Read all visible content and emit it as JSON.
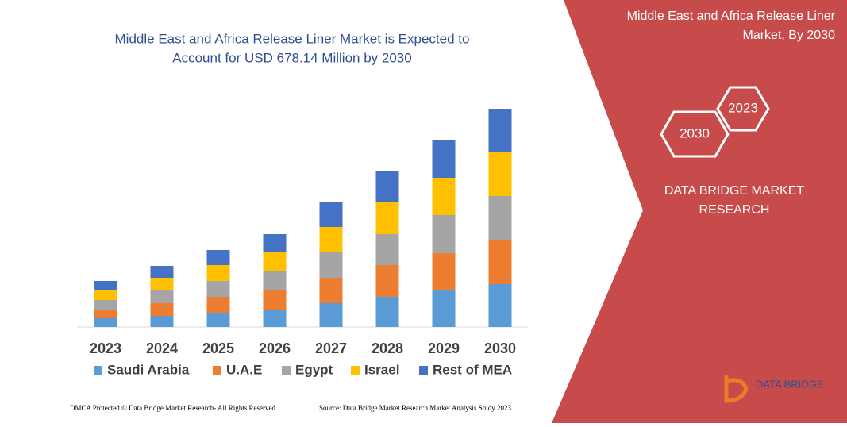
{
  "chart_data": {
    "type": "stacked-bar",
    "title": [
      "Middle East and Africa Release Liner Market is Expected to",
      "Account for USD 678.14 Million by 2030"
    ],
    "categories": [
      "2023",
      "2024",
      "2025",
      "2026",
      "2027",
      "2028",
      "2029",
      "2030"
    ],
    "series": [
      {
        "name": "Saudi Arabia",
        "color": "#5b9bd5",
        "values": [
          11,
          14,
          18,
          22,
          30,
          38,
          46,
          54
        ]
      },
      {
        "name": "U.A.E",
        "color": "#ed7d31",
        "values": [
          11,
          16,
          20,
          24,
          32,
          40,
          47,
          55
        ]
      },
      {
        "name": "Egypt",
        "color": "#a5a5a5",
        "values": [
          12,
          16,
          20,
          24,
          32,
          39,
          48,
          56
        ]
      },
      {
        "name": "Israel",
        "color": "#ffc000",
        "values": [
          12,
          16,
          20,
          24,
          32,
          40,
          47,
          55
        ]
      },
      {
        "name": "Rest of MEA",
        "color": "#4472c4",
        "values": [
          12,
          15,
          19,
          23,
          31,
          39,
          48,
          55
        ]
      }
    ],
    "ylim": [
      0,
      275
    ]
  },
  "panel": {
    "title": [
      "Middle East and Africa Release Liner",
      "Market, By 2030"
    ],
    "hexagons": [
      "2023",
      "2030"
    ],
    "brand": [
      "DATA BRIDGE MARKET",
      "RESEARCH"
    ]
  },
  "logo": "DATA BRIDGE",
  "footer": {
    "dmca": "DMCA Protected © Data Bridge Market Research-  All Rights Reserved.",
    "source": "Source: Data Bridge Market Research  Market Analysis Study 2023"
  }
}
